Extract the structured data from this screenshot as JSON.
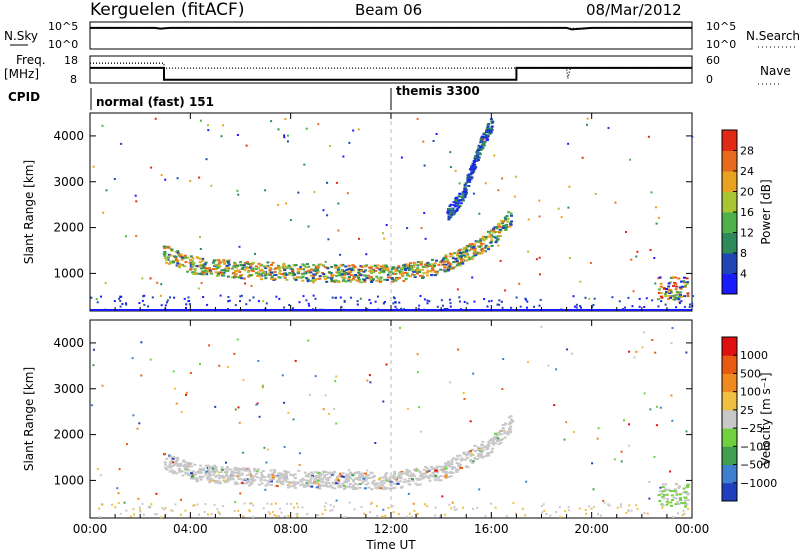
{
  "header": {
    "station": "Kerguelen (fitACF)",
    "beam": "Beam 06",
    "date": "08/Mar/2012"
  },
  "chart_data": [
    {
      "type": "line",
      "panel": "noise",
      "left_label": "N.Sky",
      "right_label": "N.Search",
      "left_ticks": [
        "10^5",
        "10^0"
      ],
      "right_ticks": [
        "10^5",
        "10^0"
      ],
      "series": [
        {
          "name": "N.Sky",
          "style": "solid",
          "x": [
            0,
            2.6,
            2.8,
            3.2,
            6,
            10,
            14,
            16,
            19,
            19.2,
            20,
            24
          ],
          "y": [
            5.0,
            5.0,
            4.8,
            5.0,
            5.0,
            5.0,
            5.0,
            5.0,
            5.0,
            4.6,
            5.0,
            5.0
          ]
        },
        {
          "name": "N.Search",
          "style": "dotted",
          "x": [
            0,
            24
          ],
          "y": [
            4.9,
            4.9
          ]
        }
      ],
      "xlim": [
        0,
        24
      ],
      "ylim": [
        0,
        6
      ]
    },
    {
      "type": "line",
      "panel": "frequency",
      "left_label_top": "Freq.",
      "left_label_unit": "[MHz]",
      "right_label": "Nave",
      "left_ticks": [
        "18",
        "8"
      ],
      "right_ticks": [
        "60",
        "0"
      ],
      "series": [
        {
          "name": "Freq",
          "style": "solid",
          "x": [
            0,
            2.95,
            2.95,
            17,
            17,
            24
          ],
          "y": [
            13.6,
            13.6,
            9.2,
            9.2,
            13.6,
            13.6
          ]
        },
        {
          "name": "Nave",
          "style": "dotted",
          "x": [
            0,
            2.95,
            2.95,
            19.0,
            19.05,
            19.15,
            24
          ],
          "y": [
            44,
            44,
            33,
            33,
            10,
            33,
            33
          ]
        }
      ],
      "xlim": [
        0,
        24
      ],
      "ylim": [
        8,
        18
      ]
    },
    {
      "type": "table",
      "panel": "cpid",
      "label": "CPID",
      "segments": [
        {
          "name": "normal (fast) 151",
          "start": 0,
          "end": 12
        },
        {
          "name": "themis 3300",
          "start": 12,
          "end": 24
        }
      ]
    },
    {
      "type": "heatmap",
      "panel": "power",
      "ylabel": "Slant Range [km]",
      "yticks": [
        1000,
        2000,
        3000,
        4000
      ],
      "ylim": [
        180,
        4500
      ],
      "xlim": [
        0,
        24
      ],
      "colorbar": {
        "label": "Power [dB]",
        "ticks": [
          "4",
          "8",
          "12",
          "16",
          "20",
          "24",
          "28"
        ],
        "colors": [
          "#1a1aff",
          "#1e46b4",
          "#2f8a5a",
          "#4eb14a",
          "#a9c534",
          "#e8a21f",
          "#e86a1c",
          "#e12a16"
        ]
      },
      "features": [
        {
          "name": "main scatter band",
          "x": [
            2.9,
            4,
            6,
            8,
            10,
            12,
            13,
            14,
            15,
            16,
            16.8
          ],
          "y": [
            1450,
            1200,
            1100,
            1050,
            1020,
            1020,
            1080,
            1200,
            1450,
            1800,
            2300
          ]
        },
        {
          "name": "upper branch",
          "x": [
            14.2,
            14.8,
            15.2,
            15.6,
            16.0
          ],
          "y": [
            2300,
            2700,
            3300,
            3900,
            4300
          ]
        },
        {
          "name": "near-range echoes",
          "x": [
            0,
            24
          ],
          "y": [
            300,
            300
          ]
        }
      ]
    },
    {
      "type": "heatmap",
      "panel": "velocity",
      "ylabel": "Slant Range [km]",
      "yticks": [
        1000,
        2000,
        3000,
        4000
      ],
      "ylim": [
        180,
        4500
      ],
      "xlim": [
        0,
        24
      ],
      "xticks": [
        "00:00",
        "04:00",
        "08:00",
        "12:00",
        "16:00",
        "20:00",
        "00:00"
      ],
      "xlabel": "Time UT",
      "colorbar": {
        "label": "Velocity [m s⁻¹]",
        "ticks": [
          "1000",
          "500",
          "100",
          "25",
          "−25",
          "−100",
          "−500",
          "−1000"
        ],
        "colors": [
          "#1f3fbf",
          "#3f7fcf",
          "#3f9f4f",
          "#6fd13f",
          "#c8c8c8",
          "#f0c040",
          "#f08a20",
          "#e85a10",
          "#e01010"
        ]
      },
      "features": [
        {
          "name": "ground scatter band (low velocity)",
          "x": [
            2.9,
            4,
            6,
            8,
            10,
            12,
            14,
            16,
            16.8
          ],
          "y": [
            1450,
            1200,
            1100,
            1050,
            1020,
            1020,
            1200,
            1800,
            2300
          ]
        }
      ]
    }
  ]
}
